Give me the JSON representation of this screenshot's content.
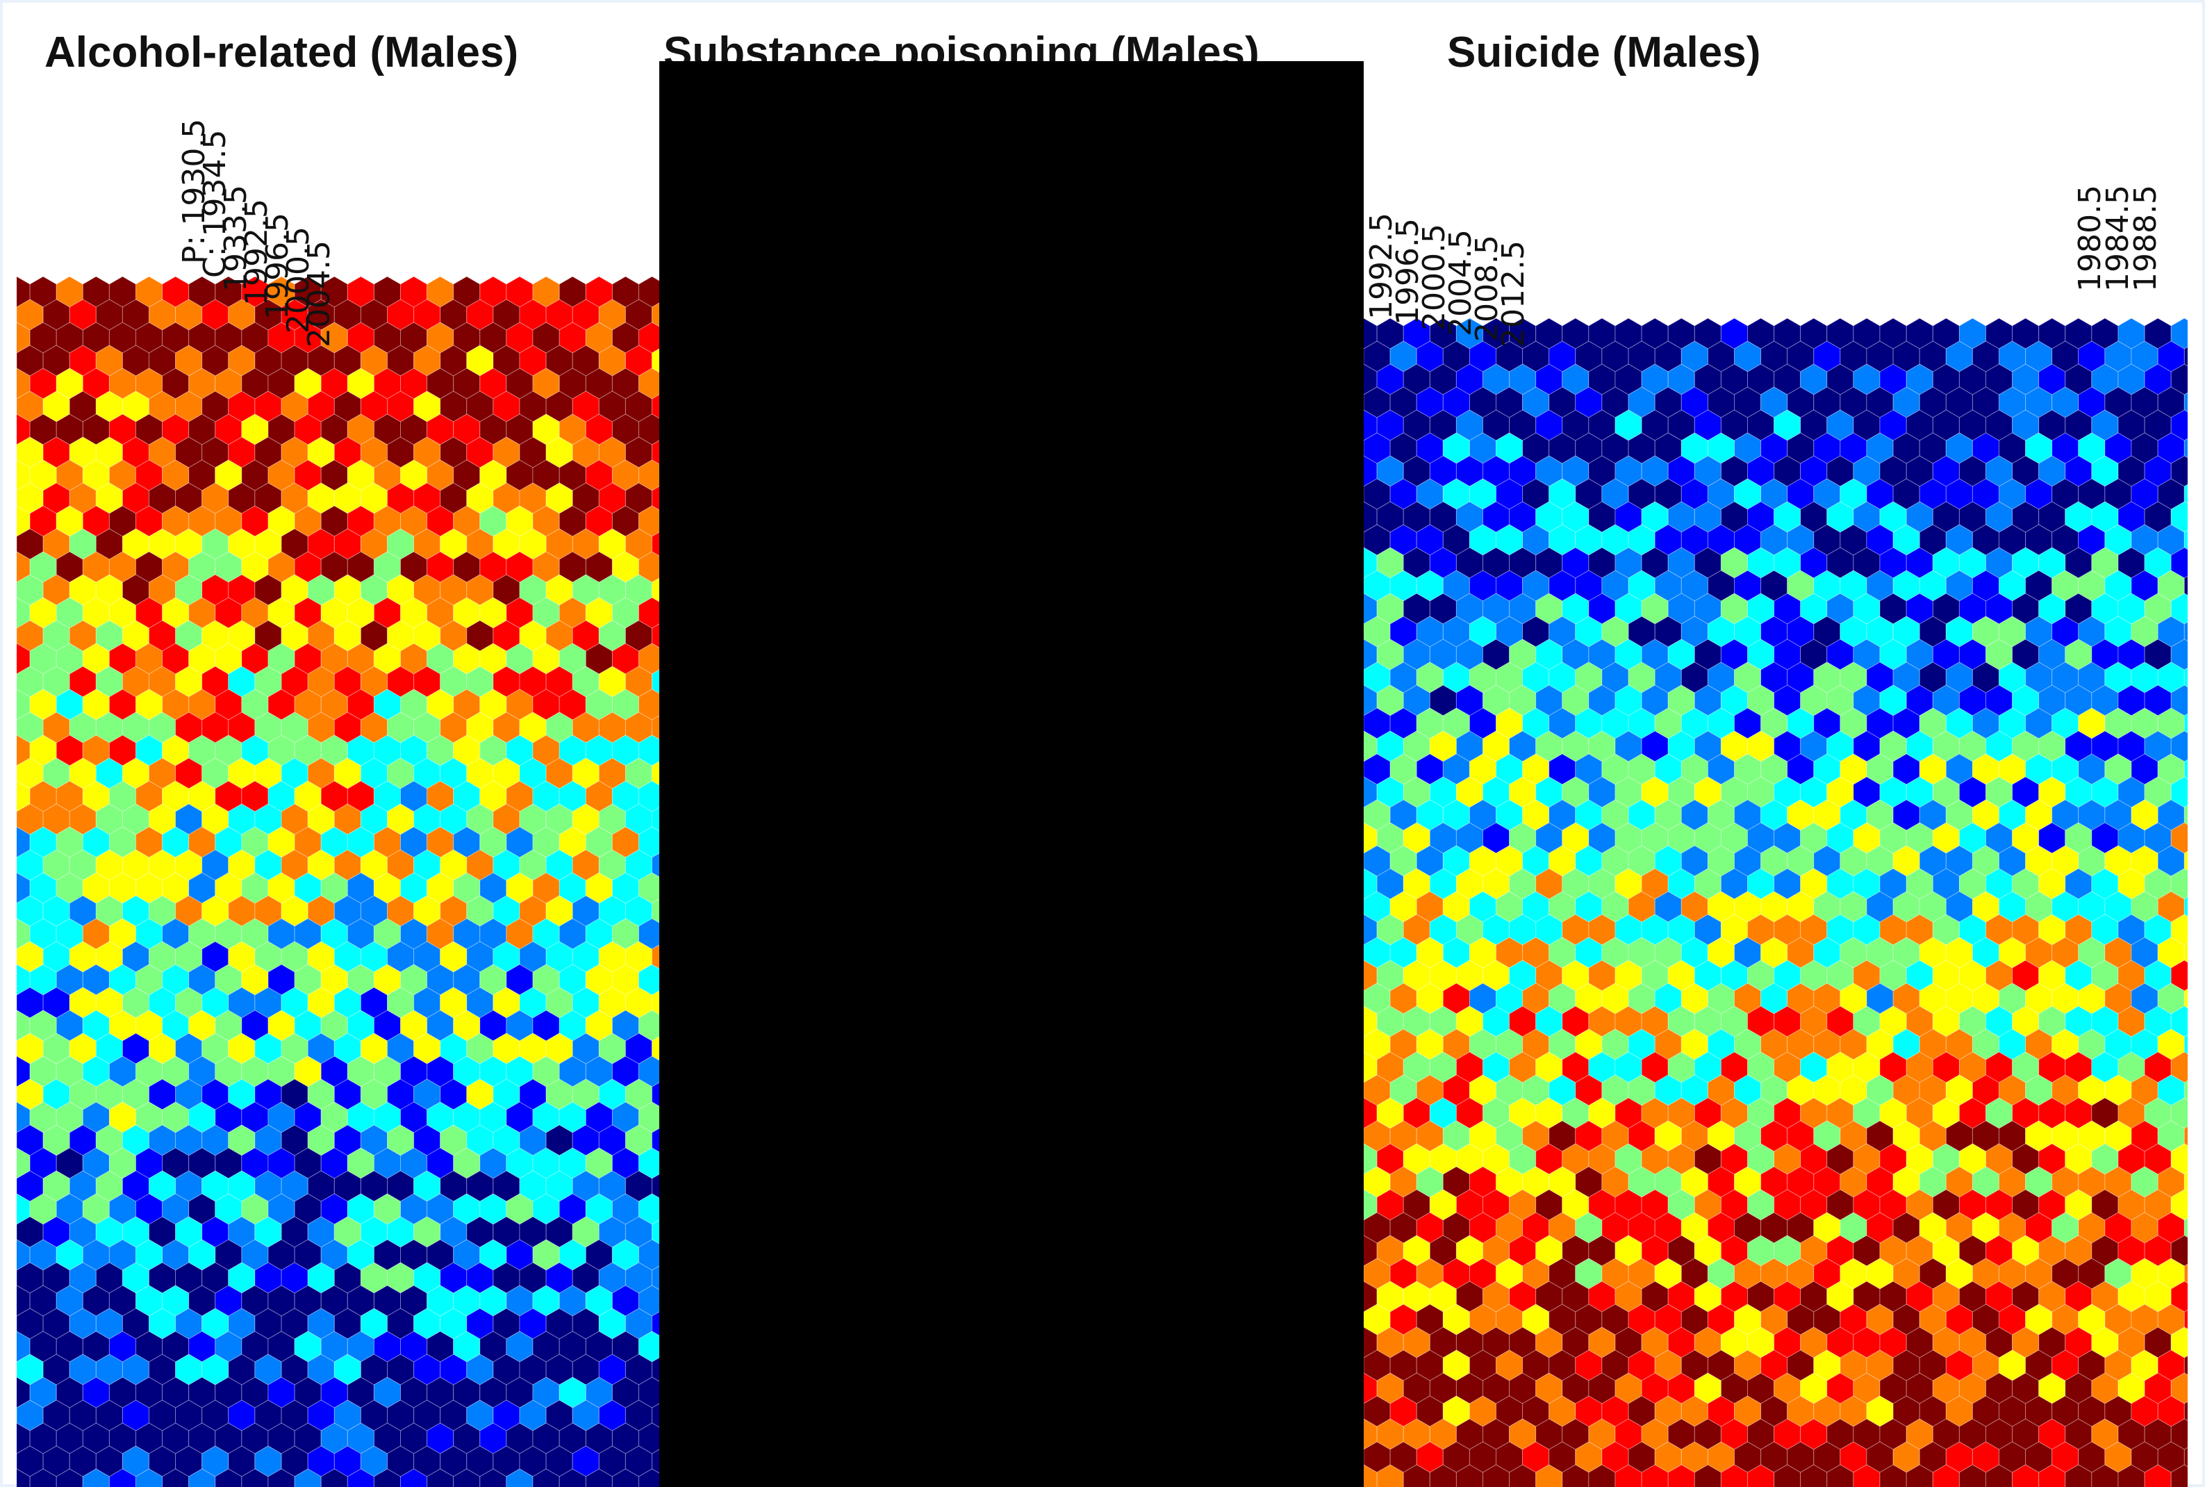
{
  "panels": [
    {
      "title": "Alcohol-related (Males)",
      "tick_labels": [
        "P: 1930.5",
        "C: 1934.5",
        "1933.5",
        "1992.5",
        "1996.5",
        "2000.5",
        "2004.5"
      ]
    },
    {
      "title": "Substance poisoning (Males)",
      "tick_labels": []
    },
    {
      "title": "Suicide (Males)",
      "tick_labels_left": [
        "1992.5",
        "1996.5",
        "2000.5",
        "2004.5",
        "2008.5",
        "2012.5"
      ],
      "tick_labels_right": [
        "1980.5",
        "1984.5",
        "1988.5"
      ]
    }
  ],
  "chart_data": [
    {
      "type": "heatmap",
      "title": "Alcohol-related (Males)",
      "colormap": "jet",
      "grid": false
    },
    {
      "type": "heatmap",
      "title": "Substance poisoning (Males)",
      "colormap": "jet",
      "grid": false
    },
    {
      "type": "heatmap",
      "title": "Suicide (Males)",
      "colormap": "jet",
      "grid": false
    }
  ],
  "colors": {
    "jet": [
      "#00007f",
      "#0000ff",
      "#007fff",
      "#00ffff",
      "#7fff7f",
      "#ffff00",
      "#ff7f00",
      "#ff0000",
      "#7f0000"
    ],
    "border": "#e9f1fb",
    "occluder": "#000000"
  }
}
